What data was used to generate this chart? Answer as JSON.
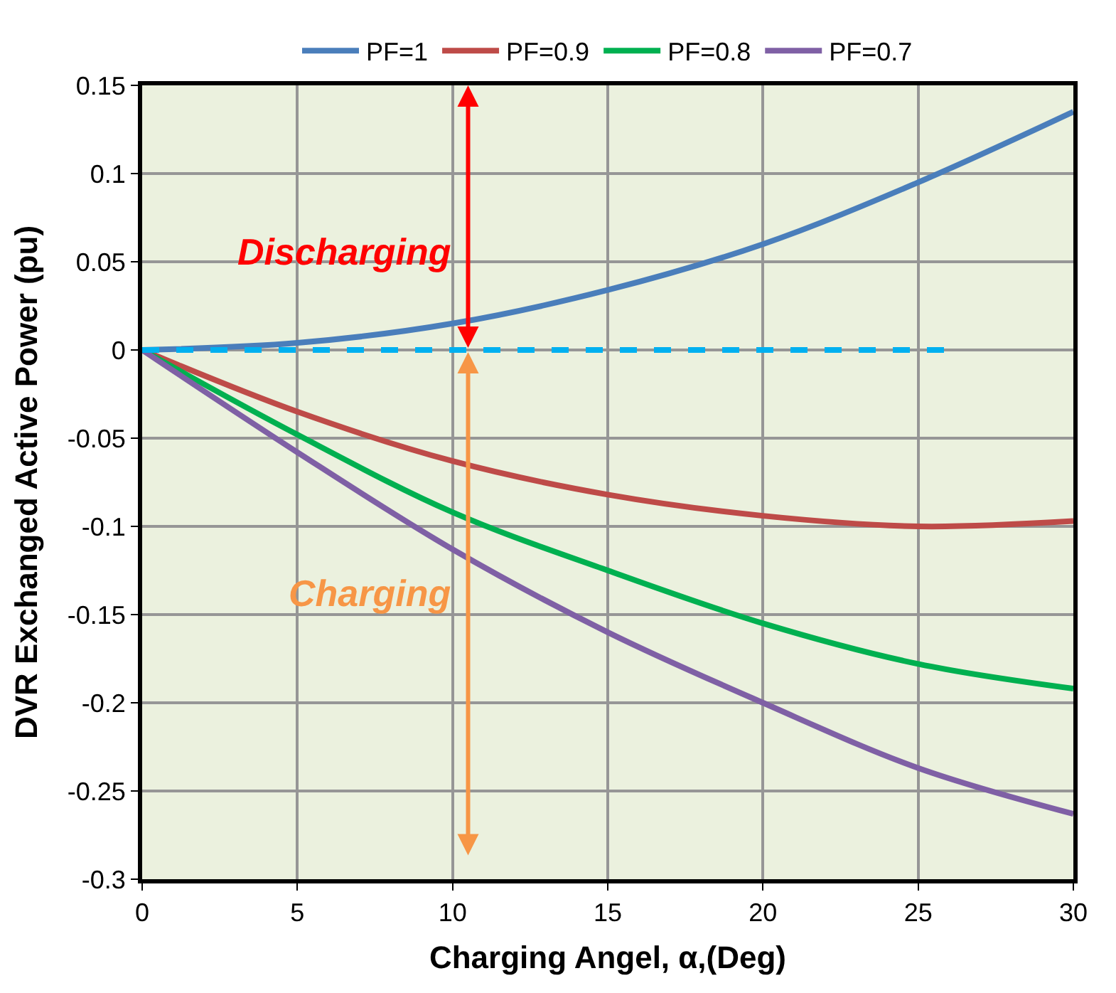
{
  "chart_data": {
    "type": "line",
    "xlabel": "Charging Angel, α,(Deg)",
    "ylabel": "DVR Exchanged Active Power (pu)",
    "x": [
      0,
      5,
      10,
      15,
      20,
      25,
      30
    ],
    "series": [
      {
        "name": "PF=1",
        "color": "#4a7ebb",
        "values": [
          0,
          0.004,
          0.015,
          0.034,
          0.06,
          0.095,
          0.135
        ]
      },
      {
        "name": "PF=0.9",
        "color": "#be4b48",
        "values": [
          0,
          -0.035,
          -0.063,
          -0.082,
          -0.094,
          -0.1,
          -0.097
        ]
      },
      {
        "name": "PF=0.8",
        "color": "#00b050",
        "values": [
          0,
          -0.048,
          -0.092,
          -0.125,
          -0.155,
          -0.178,
          -0.192
        ]
      },
      {
        "name": "PF=0.7",
        "color": "#7f60a5",
        "values": [
          0,
          -0.058,
          -0.113,
          -0.16,
          -0.2,
          -0.237,
          -0.263
        ]
      },
      {
        "color": "#00b0f0",
        "x": [
          0,
          26
        ],
        "values": [
          0,
          0
        ],
        "line_style": "dashed"
      }
    ],
    "annotations": [
      "Discharging",
      "Charging"
    ],
    "xlim": [
      0,
      30
    ],
    "xticks": [
      0,
      5,
      10,
      15,
      20,
      25,
      30
    ],
    "ylim": [
      -0.3,
      0.15
    ],
    "yticks": [
      -0.3,
      -0.25,
      -0.2,
      -0.15,
      -0.1,
      -0.05,
      0,
      0.05,
      0.1,
      0.15
    ],
    "grid": true,
    "legend": "top",
    "marker": "none",
    "line_style": "solid"
  }
}
